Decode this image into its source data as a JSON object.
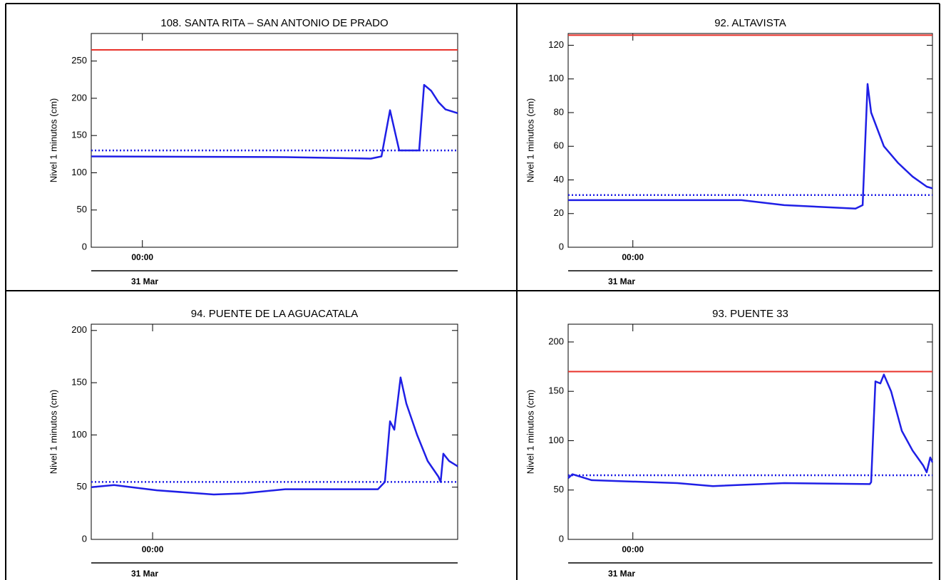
{
  "chart_data": [
    {
      "type": "line",
      "title": "108. SANTA RITA – SAN ANTONIO DE PRADO",
      "ylabel": "Nivel 1 minutos (cm)",
      "date_label": "31 Mar",
      "x": [
        -3,
        8.38,
        13.4,
        14.03,
        14.53,
        15.07,
        16.24,
        16.53,
        16.95,
        17.37,
        17.79,
        18.5
      ],
      "values": [
        122,
        121,
        119,
        122,
        184,
        130,
        130,
        218,
        210,
        195,
        185,
        180
      ],
      "color": "#1f1fe6",
      "xlim": [
        -3,
        18.5
      ],
      "xticks": [
        {
          "value": 0,
          "label": "00:00"
        }
      ],
      "ylim": [
        0,
        287
      ],
      "yticks": [
        0,
        50,
        100,
        150,
        200,
        250
      ],
      "thresholds": [
        {
          "value": 265,
          "color": "#e8322a",
          "style": "solid"
        },
        {
          "value": 130,
          "color": "#1f1fe6",
          "style": "dotted"
        }
      ]
    },
    {
      "type": "line",
      "title": "92. ALTAVISTA",
      "ylabel": "Nivel 1 minutos (cm)",
      "date_label": "31 Mar",
      "x": [
        -3.8,
        6.38,
        8.89,
        13.08,
        13.5,
        13.79,
        14.0,
        14.75,
        15.59,
        16.43,
        17.27,
        17.6
      ],
      "values": [
        28,
        28,
        25,
        23,
        25,
        97,
        80,
        60,
        50,
        42,
        36,
        35
      ],
      "color": "#1f1fe6",
      "xlim": [
        -3.8,
        17.6
      ],
      "xticks": [
        {
          "value": 0,
          "label": "00:00"
        }
      ],
      "ylim": [
        0,
        127
      ],
      "yticks": [
        0,
        20,
        40,
        60,
        80,
        100,
        120
      ],
      "thresholds": [
        {
          "value": 126,
          "color": "#e8322a",
          "style": "solid"
        },
        {
          "value": 31,
          "color": "#1f1fe6",
          "style": "dotted"
        }
      ]
    },
    {
      "type": "line",
      "title": "94. PUENTE DE LA AGUACATALA",
      "ylabel": "Nivel 1 minutos (cm)",
      "date_label": "31 Mar",
      "x": [
        -3.6,
        -2.26,
        0.25,
        3.59,
        5.27,
        7.78,
        13.22,
        13.63,
        13.93,
        14.18,
        14.55,
        14.89,
        15.52,
        16.14,
        16.77,
        16.9,
        17.06,
        17.4,
        17.9
      ],
      "values": [
        50,
        52,
        47,
        43,
        44,
        48,
        48,
        55,
        113,
        105,
        155,
        130,
        100,
        75,
        60,
        55,
        82,
        75,
        70
      ],
      "color": "#1f1fe6",
      "xlim": [
        -3.6,
        17.9
      ],
      "xticks": [
        {
          "value": 0,
          "label": "00:00"
        }
      ],
      "ylim": [
        0,
        206
      ],
      "yticks": [
        0,
        50,
        100,
        150,
        200
      ],
      "thresholds": [
        {
          "value": 55,
          "color": "#1f1fe6",
          "style": "dotted"
        }
      ]
    },
    {
      "type": "line",
      "title": "93. PUENTE 33",
      "ylabel": "Nivel 1 minutos (cm)",
      "date_label": "31 Mar",
      "x": [
        -3.8,
        -3.55,
        -2.42,
        2.61,
        4.7,
        8.89,
        13.92,
        14.0,
        14.25,
        14.54,
        14.75,
        15.17,
        15.8,
        16.43,
        17.05,
        17.26,
        17.47,
        17.6
      ],
      "values": [
        62,
        66,
        60,
        57,
        54,
        57,
        56,
        58,
        160,
        158,
        167,
        150,
        110,
        90,
        75,
        68,
        83,
        78
      ],
      "color": "#1f1fe6",
      "xlim": [
        -3.8,
        17.6
      ],
      "xticks": [
        {
          "value": 0,
          "label": "00:00"
        }
      ],
      "ylim": [
        0,
        218
      ],
      "yticks": [
        0,
        50,
        100,
        150,
        200
      ],
      "thresholds": [
        {
          "value": 170,
          "color": "#e8322a",
          "style": "solid"
        },
        {
          "value": 65,
          "color": "#1f1fe6",
          "style": "dotted"
        }
      ]
    }
  ]
}
